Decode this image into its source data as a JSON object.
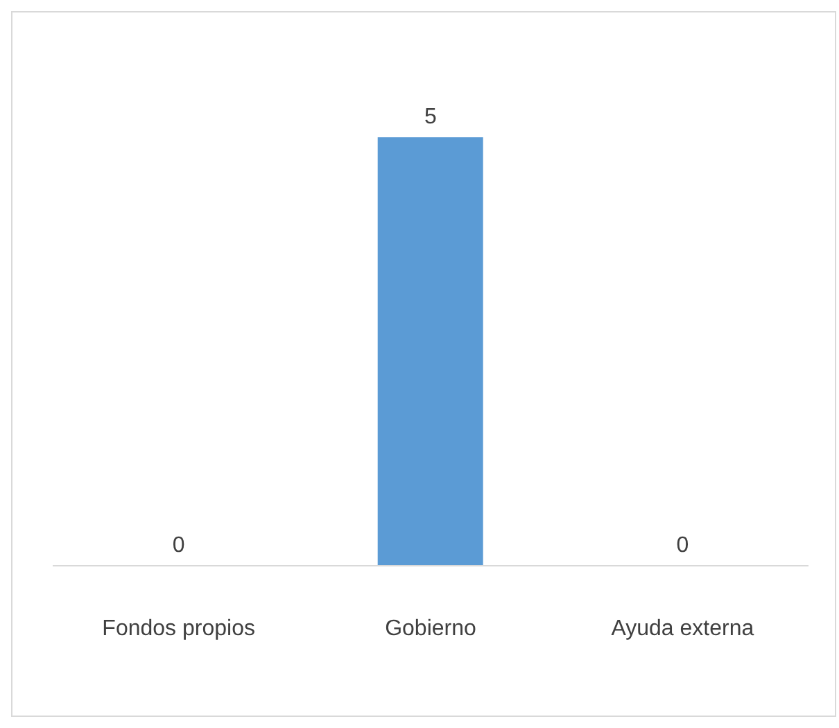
{
  "chart_data": {
    "type": "bar",
    "categories": [
      "Fondos propios",
      "Gobierno",
      "Ayuda externa"
    ],
    "values": [
      0,
      5,
      0
    ],
    "color": "#5b9bd5",
    "data_labels": true,
    "tick_labels": "x",
    "grid": false,
    "legend": false
  }
}
